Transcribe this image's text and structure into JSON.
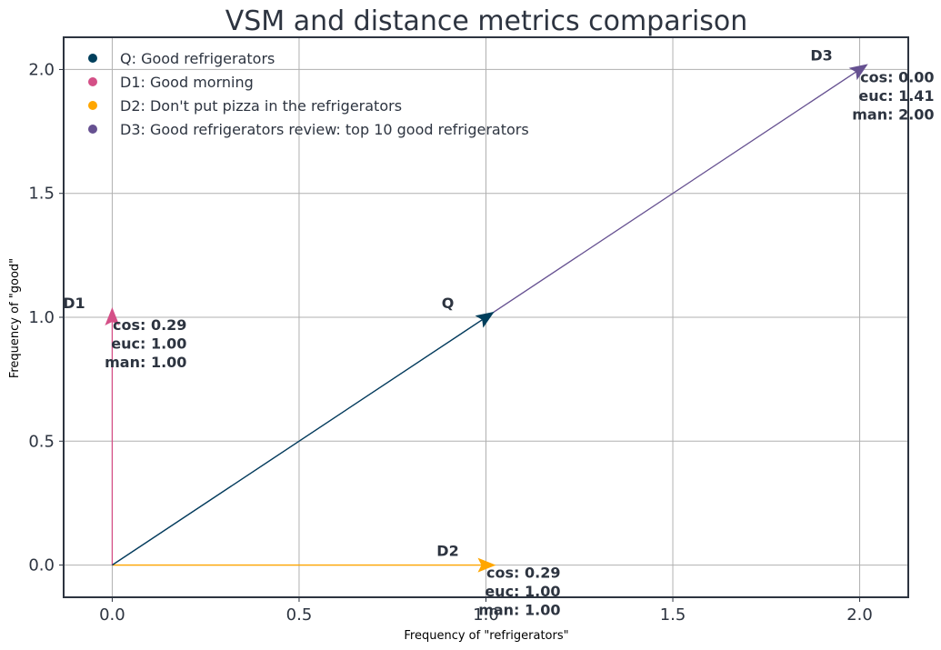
{
  "chart_data": {
    "type": "quiver",
    "title": "VSM and distance metrics comparison",
    "xlabel": "Frequency of \"refrigerators\"",
    "ylabel": "Frequency of \"good\"",
    "xlim": [
      -0.13,
      2.13
    ],
    "ylim": [
      -0.13,
      2.13
    ],
    "xticks": [
      "0.0",
      "0.5",
      "1.0",
      "1.5",
      "2.0"
    ],
    "xtick_values": [
      0,
      0.5,
      1.0,
      1.5,
      2.0
    ],
    "yticks": [
      "0.0",
      "0.5",
      "1.0",
      "1.5",
      "2.0"
    ],
    "ytick_values": [
      0,
      0.5,
      1.0,
      1.5,
      2.0
    ],
    "grid": true,
    "legend_position": "top-left",
    "series": [
      {
        "name": "Q: Good refrigerators",
        "label": "Q",
        "x": 1,
        "y": 1,
        "color": "#003f5c",
        "metrics": []
      },
      {
        "name": "D1: Good morning",
        "label": "D1",
        "x": 0,
        "y": 1,
        "color": "#d45087",
        "metrics": [
          "cos: 0.29",
          "euc: 1.00",
          "man: 1.00"
        ]
      },
      {
        "name": "D2: Don't put pizza in the refrigerators",
        "label": "D2",
        "x": 1,
        "y": 0,
        "color": "#ffa600",
        "metrics": [
          "cos: 0.29",
          "euc: 1.00",
          "man: 1.00"
        ]
      },
      {
        "name": "D3: Good refrigerators review: top 10 good refrigerators",
        "label": "D3",
        "x": 2,
        "y": 2,
        "color": "#665191",
        "metrics": [
          "cos: 0.00",
          "euc: 1.41",
          "man: 2.00"
        ]
      }
    ]
  }
}
